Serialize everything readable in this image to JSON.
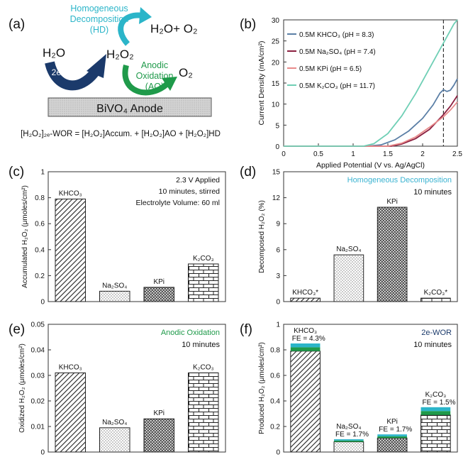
{
  "panel_labels": {
    "a": "(a)",
    "b": "(b)",
    "c": "(c)",
    "d": "(d)",
    "e": "(e)",
    "f": "(f)"
  },
  "schematic": {
    "hd_label_1": "Homogeneous",
    "hd_label_2": "Decomposition",
    "hd_label_3": "(HD)",
    "hd_product": "H₂O+ O₂",
    "water": "H₂O",
    "wor_label": "2e-WOR",
    "h2o2": "H₂O₂",
    "ao_label_1": "Anodic",
    "ao_label_2": "Oxidation",
    "ao_label_3": "(AO)",
    "o2": "O₂",
    "anode_label": "BiVO₄ Anode",
    "equation": "[H₂O₂]₂ₑ-WOR = [H₂O₂]Accum. + [H₂O₂]AO + [H₂O₂]HD",
    "colors": {
      "hd": "#2bb5c9",
      "wor": "#1b3a6b",
      "ao": "#1f9a4a"
    }
  },
  "chart_data": [
    {
      "id": "b",
      "type": "line",
      "title": "",
      "xlabel": "Applied Potential (V vs. Ag/AgCl)",
      "ylabel": "Current Density (mA/cm²)",
      "xlim": [
        0,
        2.5
      ],
      "ylim": [
        0,
        30
      ],
      "xticks": [
        "0",
        "0.5",
        "1",
        "1.5",
        "2",
        "2.5"
      ],
      "yticks": [
        "0",
        "5",
        "10",
        "15",
        "20",
        "25",
        "30"
      ],
      "vline_x": 2.3,
      "series": [
        {
          "name": "0.5M KHCO₃ (pH = 8.3)",
          "color": "#5b7fa6",
          "x": [
            0,
            1.2,
            1.4,
            1.6,
            1.8,
            2.0,
            2.15,
            2.25,
            2.3,
            2.35,
            2.4,
            2.45,
            2.5
          ],
          "y": [
            0,
            0,
            0.3,
            1.5,
            3.6,
            6.6,
            9.8,
            12.6,
            13.4,
            13.0,
            13.3,
            14.5,
            16.0
          ]
        },
        {
          "name": "0.5M Na₂SO₄ (pH = 7.4)",
          "color": "#8b2040",
          "x": [
            0,
            1.55,
            1.7,
            1.9,
            2.1,
            2.3,
            2.4,
            2.5
          ],
          "y": [
            0,
            0,
            0.5,
            1.8,
            4.0,
            7.5,
            9.5,
            12.0
          ]
        },
        {
          "name": "0.5M KPi (pH = 6.5)",
          "color": "#e88a8a",
          "x": [
            0,
            1.5,
            1.7,
            1.9,
            2.1,
            2.3,
            2.4,
            2.5
          ],
          "y": [
            0,
            0,
            0.7,
            2.2,
            4.5,
            7.0,
            8.6,
            10.5
          ]
        },
        {
          "name": "0.5M K₂CO₃ (pH = 11.7)",
          "color": "#6fcfb5",
          "x": [
            0,
            1.15,
            1.3,
            1.5,
            1.7,
            1.9,
            2.1,
            2.3,
            2.45,
            2.5
          ],
          "y": [
            0,
            0,
            0.6,
            3.0,
            7.2,
            12.5,
            18.5,
            24.5,
            29.0,
            30.0
          ]
        }
      ]
    },
    {
      "id": "c",
      "type": "bar",
      "ylabel": "Accumulated H₂O₂ (μmoles/cm²)",
      "ylim": [
        0,
        1
      ],
      "yticks": [
        "0",
        "0.2",
        "0.4",
        "0.6",
        "0.8",
        "1"
      ],
      "categories": [
        "KHCO₃",
        "Na₂SO₄",
        "KPi",
        "K₂CO₃"
      ],
      "values": [
        0.79,
        0.08,
        0.11,
        0.29
      ],
      "annotations": [
        "2.3 V Applied",
        "10 minutes, stirred",
        "Electrolyte Volume: 60 ml"
      ]
    },
    {
      "id": "d",
      "type": "bar",
      "ylabel": "Decomposed H₂O₂ (%)",
      "ylim": [
        0,
        15
      ],
      "yticks": [
        "0",
        "3",
        "6",
        "9",
        "12",
        "15"
      ],
      "categories": [
        "KHCO₃*",
        "Na₂SO₄",
        "KPi",
        "K₂CO₃*"
      ],
      "values": [
        0.4,
        5.4,
        10.9,
        0.4
      ],
      "title": "Homogeneous Decomposition",
      "subtitle": "10 minutes",
      "title_color": "#3bb3d1"
    },
    {
      "id": "e",
      "type": "bar",
      "ylabel": "Oxidized H₂O₂ (μmoles/cm²)",
      "ylim": [
        0,
        0.05
      ],
      "yticks": [
        "0",
        "0.01",
        "0.02",
        "0.03",
        "0.04",
        "0.05"
      ],
      "categories": [
        "KHCO₃",
        "Na₂SO₄",
        "KPi",
        "K₂CO₃"
      ],
      "values": [
        0.031,
        0.0095,
        0.013,
        0.031
      ],
      "title": "Anodic Oxidation",
      "subtitle": "10 minutes",
      "title_color": "#1f9a4a"
    },
    {
      "id": "f",
      "type": "bar",
      "ylabel": "Produced H₂O₂ (μmoles/cm²)",
      "ylim": [
        0,
        1
      ],
      "yticks": [
        "0",
        "0.2",
        "0.4",
        "0.6",
        "0.8",
        "1"
      ],
      "categories": [
        "KHCO₃",
        "Na₂SO₄",
        "KPi",
        "K₂CO₃"
      ],
      "values": [
        0.79,
        0.08,
        0.11,
        0.29
      ],
      "ao_values": [
        0.03,
        0.01,
        0.013,
        0.031
      ],
      "hd_values": [
        0.03,
        0.01,
        0.015,
        0.03
      ],
      "fe_labels": [
        "FE = 4.3%",
        "FE = 1.7%",
        "FE = 1.7%",
        "FE = 1.5%"
      ],
      "title": "2e-WOR",
      "subtitle": "10 minutes",
      "title_color": "#1b3a6b"
    }
  ],
  "colors": {
    "hd": "#2bb5c9",
    "ao": "#1f9a4a",
    "axis": "#333333",
    "text": "#111111"
  }
}
